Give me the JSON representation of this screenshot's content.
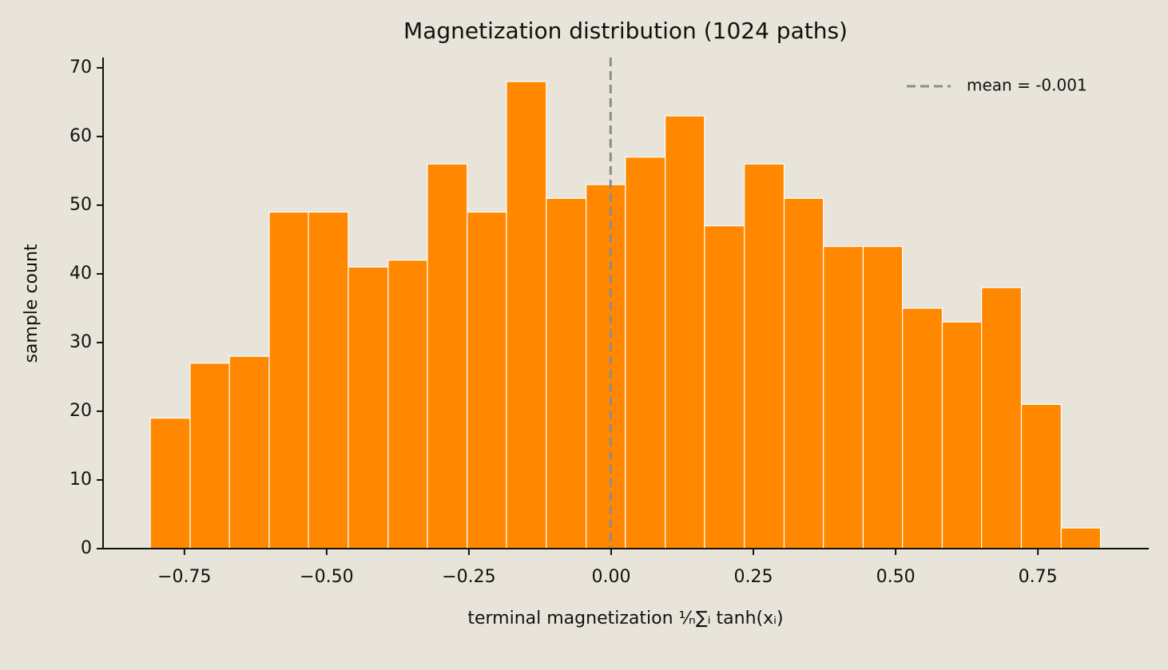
{
  "chart_data": {
    "type": "histogram",
    "title": "Magnetization distribution  (1024 paths)",
    "xlabel": "terminal magnetization  ¹⁄ₙ∑ᵢ tanh(xᵢ)",
    "ylabel": "sample count",
    "bins": [
      -0.81,
      -0.74,
      -0.671,
      -0.601,
      -0.532,
      -0.462,
      -0.392,
      -0.323,
      -0.253,
      -0.184,
      -0.114,
      -0.044,
      0.025,
      0.095,
      0.164,
      0.234,
      0.304,
      0.373,
      0.443,
      0.512,
      0.582,
      0.651,
      0.721,
      0.791,
      0.86
    ],
    "counts": [
      19,
      27,
      28,
      49,
      49,
      41,
      42,
      56,
      49,
      68,
      51,
      53,
      57,
      63,
      47,
      56,
      51,
      44,
      44,
      35,
      33,
      38,
      21,
      3
    ],
    "color": "#ff8800",
    "edgecolor": "#ffffff",
    "mean_line": {
      "value": -0.001,
      "label": "mean = -0.001",
      "color": "#8c8c8c"
    },
    "legend": "upper right",
    "xlim": [
      -0.893,
      0.945
    ],
    "ylim": [
      0,
      71.5
    ],
    "xticks": [
      {
        "value": -0.75,
        "label": "−0.75"
      },
      {
        "value": -0.5,
        "label": "−0.50"
      },
      {
        "value": -0.25,
        "label": "−0.25"
      },
      {
        "value": 0,
        "label": "0.00"
      },
      {
        "value": 0.25,
        "label": "0.25"
      },
      {
        "value": 0.5,
        "label": "0.50"
      },
      {
        "value": 0.75,
        "label": "0.75"
      }
    ],
    "yticks": [
      0,
      10,
      20,
      30,
      40,
      50,
      60,
      70
    ],
    "grid": false
  }
}
